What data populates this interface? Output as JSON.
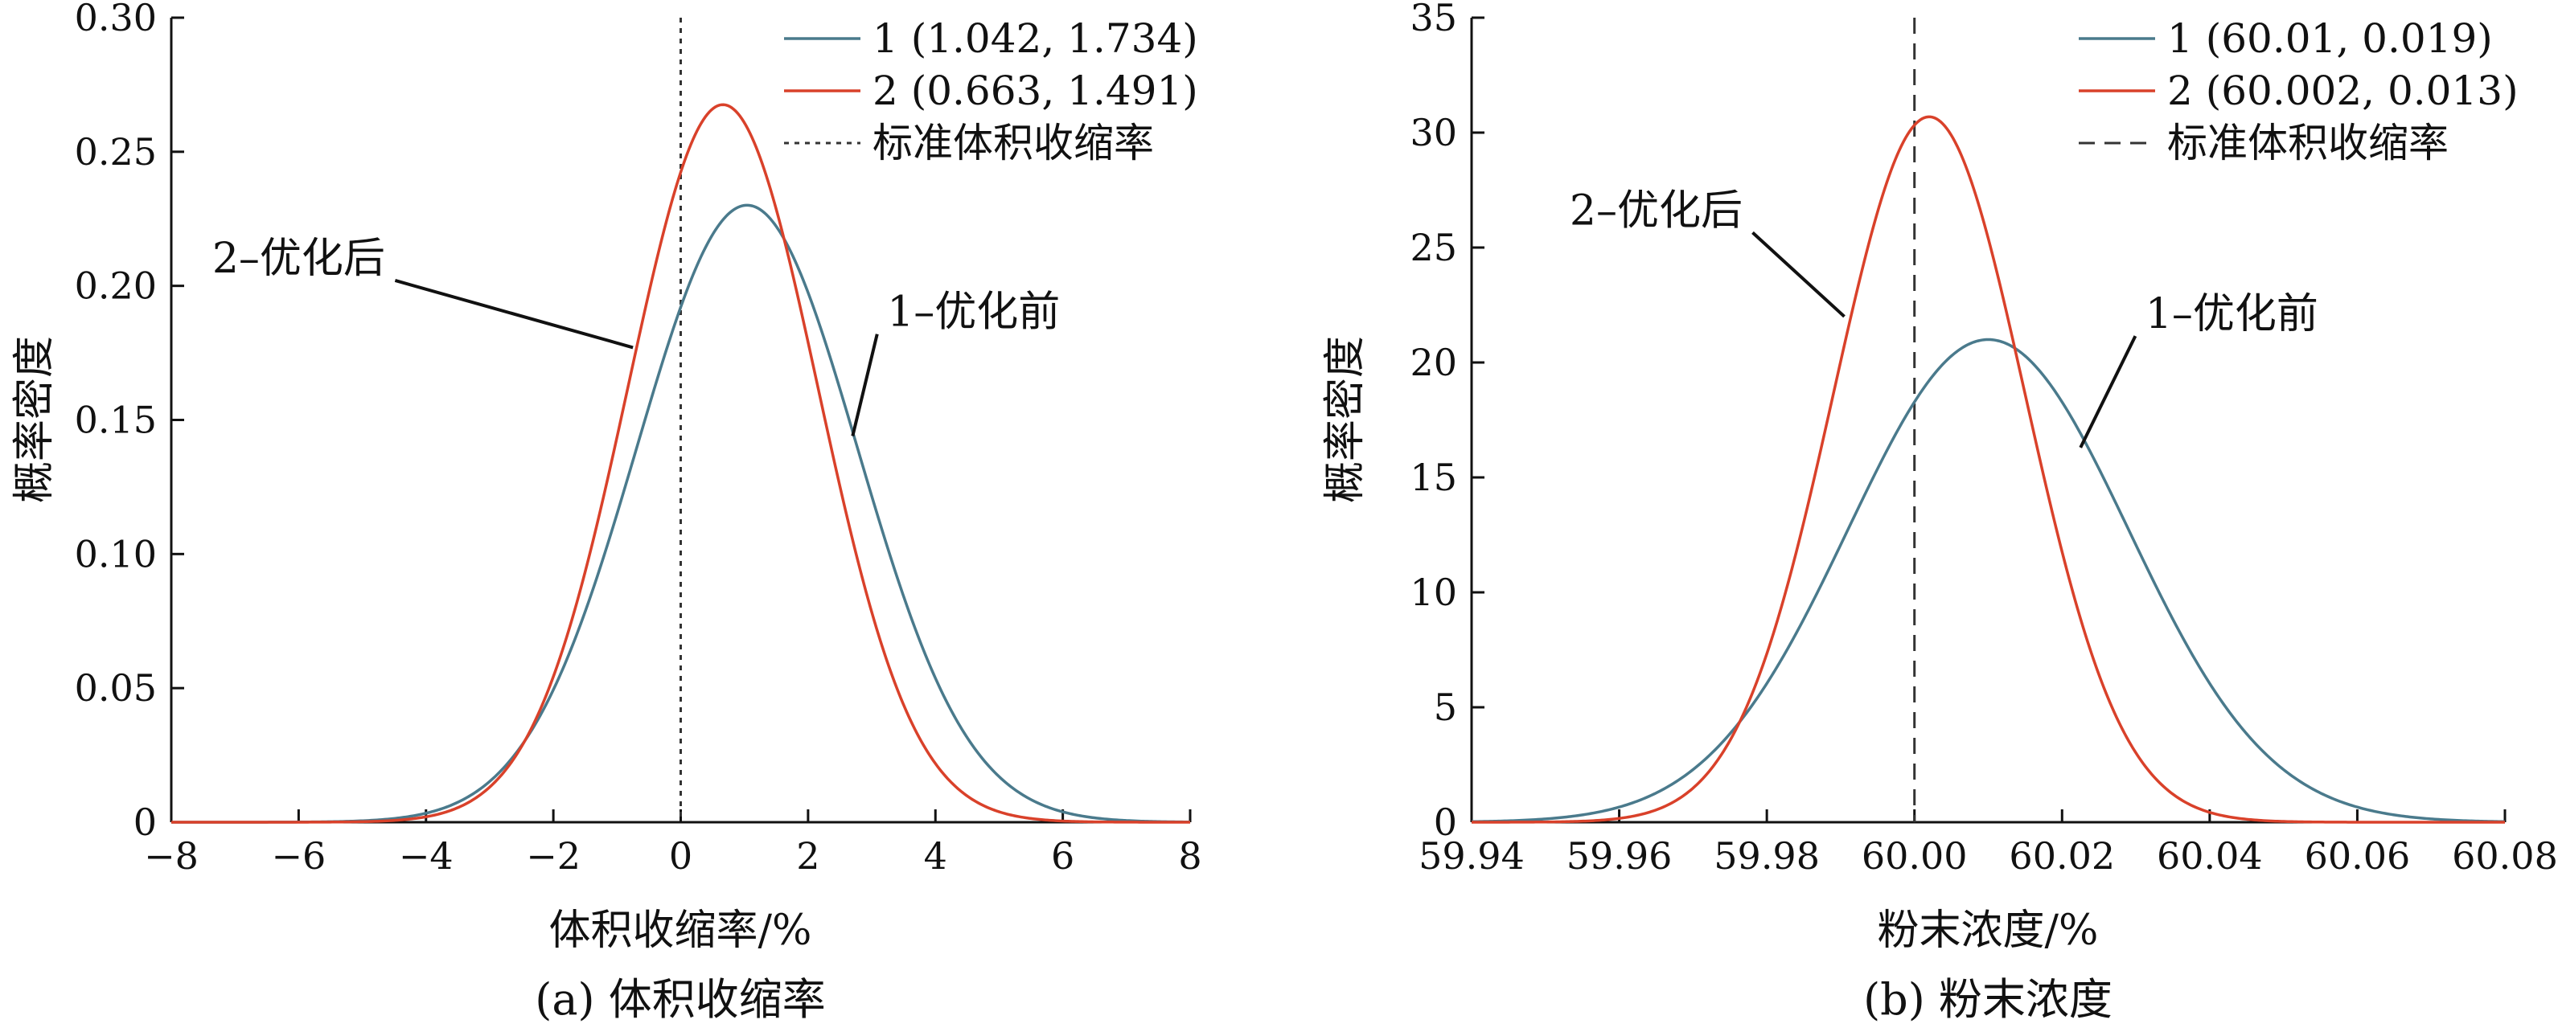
{
  "chart_data": [
    {
      "type": "line",
      "caption": "(a) 体积收缩率",
      "xlabel": "体积收缩率/%",
      "ylabel": "概率密度",
      "xlim": [
        -8,
        8
      ],
      "ylim": [
        0,
        0.3
      ],
      "xticks": [
        -8,
        -6,
        -4,
        -2,
        0,
        2,
        4,
        6,
        8
      ],
      "xtick_labels": [
        "−8",
        "−6",
        "−4",
        "−2",
        "0",
        "2",
        "4",
        "6",
        "8"
      ],
      "yticks": [
        0,
        0.05,
        0.1,
        0.15,
        0.2,
        0.25,
        0.3
      ],
      "ytick_labels": [
        "0",
        "0.05",
        "0.10",
        "0.15",
        "0.20",
        "0.25",
        "0.30"
      ],
      "series": [
        {
          "name": "1 (1.042, 1.734)",
          "distribution": "normal",
          "mean": 1.042,
          "sd": 1.734,
          "color": "#4a7a8c"
        },
        {
          "name": "2 (0.663, 1.491)",
          "distribution": "normal",
          "mean": 0.663,
          "sd": 1.491,
          "color": "#d9412a"
        }
      ],
      "reference_line": {
        "name": "标准体积收缩率",
        "x": 0,
        "style": "dotted"
      },
      "annotations": [
        {
          "text": "2–优化后",
          "point": [
            -0.75,
            0.177
          ],
          "label_at": [
            -6.0,
            0.205
          ]
        },
        {
          "text": "1–优化前",
          "point": [
            2.7,
            0.144
          ],
          "label_at": [
            4.6,
            0.185
          ]
        }
      ],
      "legend_position": "top-right"
    },
    {
      "type": "line",
      "caption": "(b) 粉末浓度",
      "xlabel": "粉末浓度/%",
      "ylabel": "概率密度",
      "xlim": [
        59.94,
        60.08
      ],
      "ylim": [
        0,
        35
      ],
      "xticks": [
        59.94,
        59.96,
        59.98,
        60.0,
        60.02,
        60.04,
        60.06,
        60.08
      ],
      "xtick_labels": [
        "59.94",
        "59.96",
        "59.98",
        "60.00",
        "60.02",
        "60.04",
        "60.06",
        "60.08"
      ],
      "yticks": [
        0,
        5,
        10,
        15,
        20,
        25,
        30,
        35
      ],
      "ytick_labels": [
        "0",
        "5",
        "10",
        "15",
        "20",
        "25",
        "30",
        "35"
      ],
      "series": [
        {
          "name": "1 (60.01, 0.019)",
          "distribution": "normal",
          "mean": 60.01,
          "sd": 0.019,
          "color": "#4a7a8c"
        },
        {
          "name": "2 (60.002, 0.013)",
          "distribution": "normal",
          "mean": 60.002,
          "sd": 0.013,
          "color": "#d9412a"
        }
      ],
      "reference_line": {
        "name": "标准体积收缩率",
        "x": 60.0,
        "style": "dashed"
      },
      "annotations": [
        {
          "text": "2–优化后",
          "point": [
            59.9905,
            22.0
          ],
          "label_at": [
            59.965,
            26.0
          ]
        },
        {
          "text": "1–优化前",
          "point": [
            60.0225,
            16.3
          ],
          "label_at": [
            60.043,
            21.5
          ]
        }
      ],
      "legend_position": "top-right"
    }
  ]
}
